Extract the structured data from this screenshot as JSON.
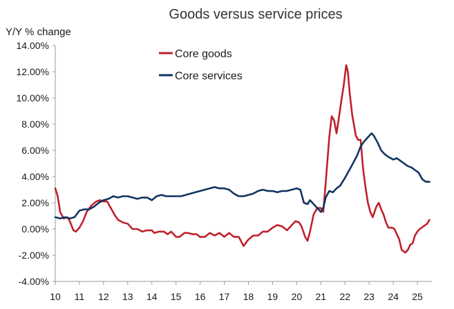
{
  "chart_data": {
    "type": "line",
    "title": "Goods versus service prices",
    "subtitle": "",
    "xlabel": "",
    "ylabel": "Y/Y % change",
    "ylim": [
      -4,
      14
    ],
    "xlim": [
      2010,
      2025.6
    ],
    "y_ticks": [
      {
        "v": 14,
        "label": "14.00%"
      },
      {
        "v": 12,
        "label": "12.00%"
      },
      {
        "v": 10,
        "label": "10.00%"
      },
      {
        "v": 8,
        "label": "8.00%"
      },
      {
        "v": 6,
        "label": "6.00%"
      },
      {
        "v": 4,
        "label": "4.00%"
      },
      {
        "v": 2,
        "label": "2.00%"
      },
      {
        "v": 0,
        "label": "0.00%"
      },
      {
        "v": -2,
        "label": "-2.00%"
      },
      {
        "v": -4,
        "label": "-4.00%"
      }
    ],
    "x_ticks": [
      {
        "v": 2010,
        "label": "10"
      },
      {
        "v": 2011,
        "label": "11"
      },
      {
        "v": 2012,
        "label": "12"
      },
      {
        "v": 2013,
        "label": "13"
      },
      {
        "v": 2014,
        "label": "14"
      },
      {
        "v": 2015,
        "label": "15"
      },
      {
        "v": 2016,
        "label": "16"
      },
      {
        "v": 2017,
        "label": "17"
      },
      {
        "v": 2018,
        "label": "18"
      },
      {
        "v": 2019,
        "label": "19"
      },
      {
        "v": 2020,
        "label": "20"
      },
      {
        "v": 2021,
        "label": "21"
      },
      {
        "v": 2022,
        "label": "22"
      },
      {
        "v": 2023,
        "label": "23"
      },
      {
        "v": 2024,
        "label": "24"
      },
      {
        "v": 2025,
        "label": "25"
      }
    ],
    "grid": false,
    "legend_position": "top-center",
    "series": [
      {
        "name": "Core goods",
        "color": "#c0202a",
        "points": [
          [
            2010.0,
            3.1
          ],
          [
            2010.1,
            2.5
          ],
          [
            2010.2,
            1.3
          ],
          [
            2010.35,
            0.8
          ],
          [
            2010.5,
            0.9
          ],
          [
            2010.6,
            0.6
          ],
          [
            2010.75,
            -0.1
          ],
          [
            2010.85,
            -0.2
          ],
          [
            2011.0,
            0.1
          ],
          [
            2011.15,
            0.6
          ],
          [
            2011.3,
            1.3
          ],
          [
            2011.5,
            1.8
          ],
          [
            2011.7,
            2.1
          ],
          [
            2011.85,
            2.2
          ],
          [
            2012.0,
            2.1
          ],
          [
            2012.15,
            2.1
          ],
          [
            2012.3,
            1.6
          ],
          [
            2012.45,
            1.1
          ],
          [
            2012.6,
            0.7
          ],
          [
            2012.8,
            0.5
          ],
          [
            2013.0,
            0.4
          ],
          [
            2013.2,
            0.0
          ],
          [
            2013.4,
            0.0
          ],
          [
            2013.6,
            -0.2
          ],
          [
            2013.8,
            -0.1
          ],
          [
            2014.0,
            -0.1
          ],
          [
            2014.1,
            -0.3
          ],
          [
            2014.3,
            -0.2
          ],
          [
            2014.5,
            -0.2
          ],
          [
            2014.65,
            -0.4
          ],
          [
            2014.8,
            -0.2
          ],
          [
            2015.0,
            -0.6
          ],
          [
            2015.15,
            -0.6
          ],
          [
            2015.35,
            -0.3
          ],
          [
            2015.5,
            -0.3
          ],
          [
            2015.7,
            -0.4
          ],
          [
            2015.85,
            -0.4
          ],
          [
            2016.0,
            -0.6
          ],
          [
            2016.2,
            -0.6
          ],
          [
            2016.4,
            -0.3
          ],
          [
            2016.6,
            -0.5
          ],
          [
            2016.8,
            -0.3
          ],
          [
            2017.0,
            -0.6
          ],
          [
            2017.2,
            -0.3
          ],
          [
            2017.4,
            -0.6
          ],
          [
            2017.6,
            -0.6
          ],
          [
            2017.8,
            -1.3
          ],
          [
            2018.0,
            -0.8
          ],
          [
            2018.2,
            -0.5
          ],
          [
            2018.4,
            -0.5
          ],
          [
            2018.6,
            -0.2
          ],
          [
            2018.8,
            -0.2
          ],
          [
            2019.0,
            0.1
          ],
          [
            2019.2,
            0.3
          ],
          [
            2019.4,
            0.2
          ],
          [
            2019.6,
            -0.1
          ],
          [
            2019.8,
            0.3
          ],
          [
            2019.95,
            0.6
          ],
          [
            2020.1,
            0.5
          ],
          [
            2020.2,
            0.2
          ],
          [
            2020.35,
            -0.6
          ],
          [
            2020.45,
            -0.9
          ],
          [
            2020.55,
            -0.2
          ],
          [
            2020.7,
            1.1
          ],
          [
            2020.85,
            1.6
          ],
          [
            2021.0,
            1.6
          ],
          [
            2021.1,
            1.3
          ],
          [
            2021.2,
            3.5
          ],
          [
            2021.35,
            7.0
          ],
          [
            2021.45,
            8.6
          ],
          [
            2021.55,
            8.3
          ],
          [
            2021.65,
            7.3
          ],
          [
            2021.75,
            8.5
          ],
          [
            2021.85,
            9.8
          ],
          [
            2021.95,
            11.0
          ],
          [
            2022.05,
            12.5
          ],
          [
            2022.12,
            12.0
          ],
          [
            2022.2,
            10.3
          ],
          [
            2022.3,
            8.7
          ],
          [
            2022.45,
            7.1
          ],
          [
            2022.55,
            6.8
          ],
          [
            2022.65,
            6.8
          ],
          [
            2022.75,
            4.6
          ],
          [
            2022.85,
            3.2
          ],
          [
            2022.95,
            2.0
          ],
          [
            2023.05,
            1.3
          ],
          [
            2023.15,
            0.9
          ],
          [
            2023.3,
            1.7
          ],
          [
            2023.4,
            2.0
          ],
          [
            2023.5,
            1.5
          ],
          [
            2023.6,
            1.1
          ],
          [
            2023.7,
            0.5
          ],
          [
            2023.8,
            0.1
          ],
          [
            2023.95,
            0.1
          ],
          [
            2024.05,
            0.0
          ],
          [
            2024.15,
            -0.4
          ],
          [
            2024.25,
            -0.8
          ],
          [
            2024.35,
            -1.6
          ],
          [
            2024.5,
            -1.8
          ],
          [
            2024.6,
            -1.6
          ],
          [
            2024.7,
            -1.2
          ],
          [
            2024.8,
            -1.1
          ],
          [
            2024.9,
            -0.5
          ],
          [
            2025.0,
            -0.2
          ],
          [
            2025.1,
            0.0
          ],
          [
            2025.25,
            0.2
          ],
          [
            2025.4,
            0.4
          ],
          [
            2025.5,
            0.7
          ]
        ]
      },
      {
        "name": "Core services",
        "color": "#0f3361",
        "points": [
          [
            2010.0,
            0.9
          ],
          [
            2010.2,
            0.8
          ],
          [
            2010.4,
            0.9
          ],
          [
            2010.6,
            0.8
          ],
          [
            2010.8,
            0.9
          ],
          [
            2011.0,
            1.4
          ],
          [
            2011.2,
            1.5
          ],
          [
            2011.4,
            1.5
          ],
          [
            2011.6,
            1.7
          ],
          [
            2011.8,
            2.0
          ],
          [
            2012.0,
            2.2
          ],
          [
            2012.2,
            2.3
          ],
          [
            2012.4,
            2.5
          ],
          [
            2012.6,
            2.4
          ],
          [
            2012.8,
            2.5
          ],
          [
            2013.0,
            2.5
          ],
          [
            2013.2,
            2.4
          ],
          [
            2013.4,
            2.3
          ],
          [
            2013.6,
            2.4
          ],
          [
            2013.8,
            2.4
          ],
          [
            2014.0,
            2.2
          ],
          [
            2014.2,
            2.5
          ],
          [
            2014.4,
            2.6
          ],
          [
            2014.6,
            2.5
          ],
          [
            2014.8,
            2.5
          ],
          [
            2015.0,
            2.5
          ],
          [
            2015.2,
            2.5
          ],
          [
            2015.4,
            2.6
          ],
          [
            2015.6,
            2.7
          ],
          [
            2015.8,
            2.8
          ],
          [
            2016.0,
            2.9
          ],
          [
            2016.2,
            3.0
          ],
          [
            2016.4,
            3.1
          ],
          [
            2016.6,
            3.2
          ],
          [
            2016.8,
            3.1
          ],
          [
            2017.0,
            3.1
          ],
          [
            2017.2,
            3.0
          ],
          [
            2017.4,
            2.7
          ],
          [
            2017.6,
            2.5
          ],
          [
            2017.8,
            2.5
          ],
          [
            2018.0,
            2.6
          ],
          [
            2018.2,
            2.7
          ],
          [
            2018.4,
            2.9
          ],
          [
            2018.6,
            3.0
          ],
          [
            2018.8,
            2.9
          ],
          [
            2019.0,
            2.9
          ],
          [
            2019.2,
            2.8
          ],
          [
            2019.4,
            2.9
          ],
          [
            2019.6,
            2.9
          ],
          [
            2019.8,
            3.0
          ],
          [
            2020.0,
            3.1
          ],
          [
            2020.15,
            3.0
          ],
          [
            2020.3,
            2.0
          ],
          [
            2020.45,
            1.9
          ],
          [
            2020.55,
            2.2
          ],
          [
            2020.7,
            1.9
          ],
          [
            2020.85,
            1.6
          ],
          [
            2021.0,
            1.3
          ],
          [
            2021.1,
            1.6
          ],
          [
            2021.2,
            2.4
          ],
          [
            2021.35,
            2.9
          ],
          [
            2021.5,
            2.8
          ],
          [
            2021.65,
            3.1
          ],
          [
            2021.8,
            3.3
          ],
          [
            2022.0,
            3.9
          ],
          [
            2022.15,
            4.4
          ],
          [
            2022.3,
            4.9
          ],
          [
            2022.5,
            5.6
          ],
          [
            2022.65,
            6.3
          ],
          [
            2022.8,
            6.7
          ],
          [
            2022.95,
            7.0
          ],
          [
            2023.1,
            7.3
          ],
          [
            2023.2,
            7.1
          ],
          [
            2023.35,
            6.6
          ],
          [
            2023.5,
            6.0
          ],
          [
            2023.65,
            5.7
          ],
          [
            2023.8,
            5.5
          ],
          [
            2024.0,
            5.3
          ],
          [
            2024.15,
            5.4
          ],
          [
            2024.3,
            5.2
          ],
          [
            2024.45,
            5.0
          ],
          [
            2024.6,
            4.8
          ],
          [
            2024.75,
            4.7
          ],
          [
            2024.9,
            4.5
          ],
          [
            2025.05,
            4.3
          ],
          [
            2025.2,
            3.8
          ],
          [
            2025.35,
            3.6
          ],
          [
            2025.5,
            3.6
          ]
        ]
      }
    ]
  }
}
